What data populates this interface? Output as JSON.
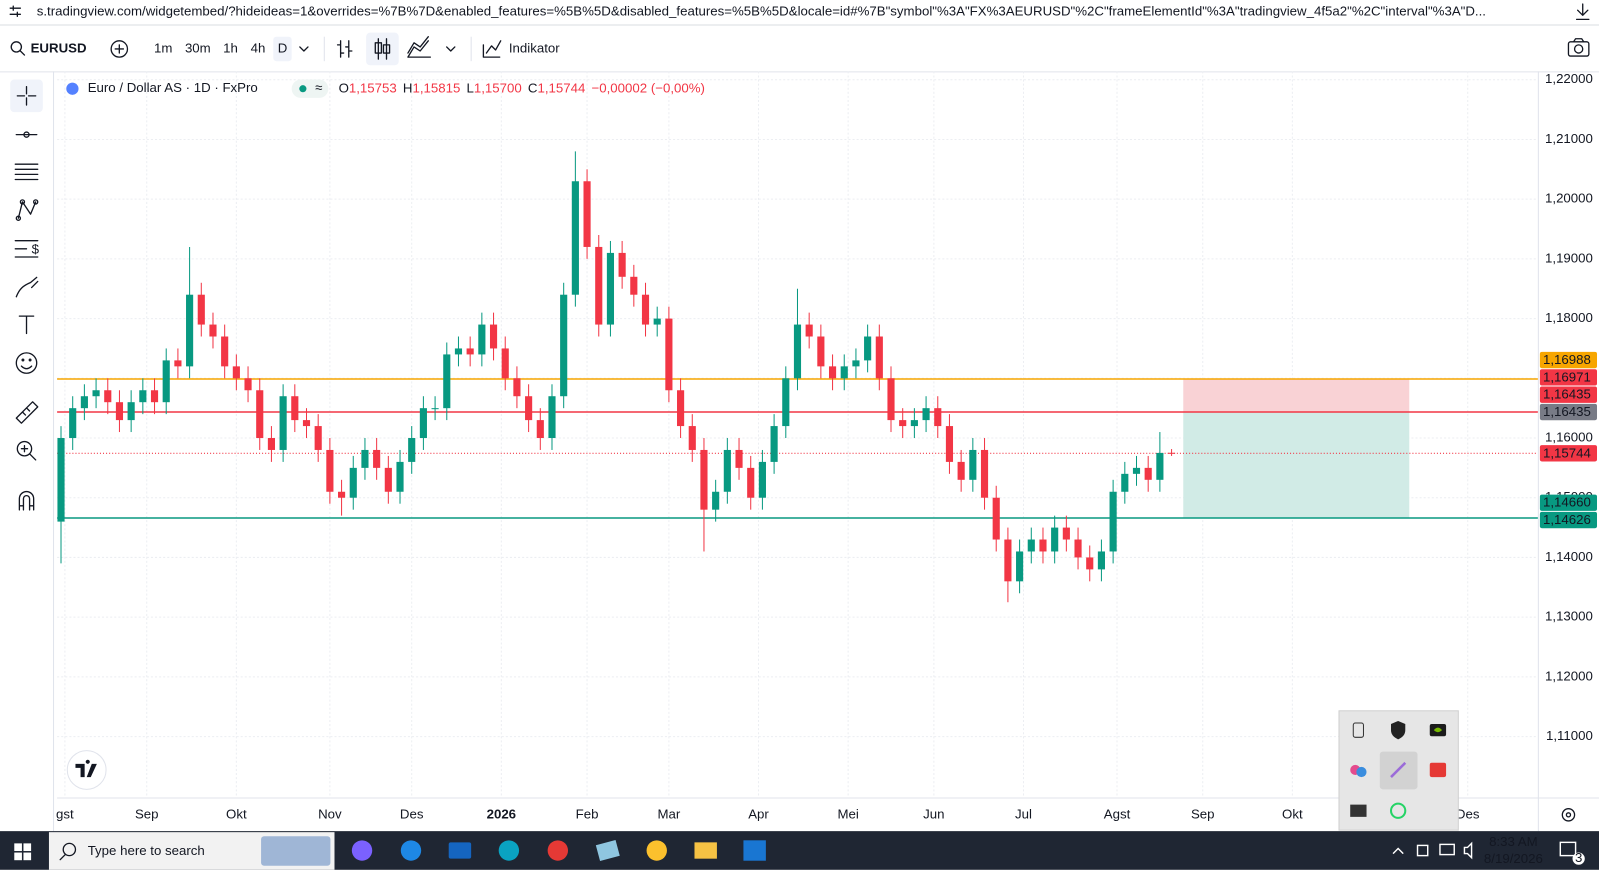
{
  "browser": {
    "url": "s.tradingview.com/widgetembed/?hideideas=1&overrides=%7B%7D&enabled_features=%5B%5D&disabled_features=%5B%5D&locale=id#%7B\"symbol\"%3A\"FX%3AEURUSD\"%2C\"frameElementId\"%3A\"tradingview_4f5a2\"%2C\"interval\"%3A\"D..."
  },
  "toolbar": {
    "symbol": "EURUSD",
    "intervals": [
      "1m",
      "30m",
      "1h",
      "4h",
      "D"
    ],
    "indicators": "Indikator"
  },
  "legend": {
    "title": "Euro / Dollar AS · 1D · FxPro",
    "badge": "≈",
    "values": [
      {
        "key": "O",
        "value": "1,15753"
      },
      {
        "key": "H",
        "value": "1,15815"
      },
      {
        "key": "L",
        "value": "1,15700"
      },
      {
        "key": "C",
        "value": "1,15744"
      }
    ],
    "change": "−0,00002 (−0,00%)"
  },
  "chart_data": {
    "type": "candlestick",
    "up_color": "#089981",
    "down_color": "#f23645",
    "grid": true,
    "xlim": [
      0,
      380
    ],
    "xticks": [
      {
        "value": 2,
        "label": "gst"
      },
      {
        "value": 23,
        "label": "Sep"
      },
      {
        "value": 46,
        "label": "Okt"
      },
      {
        "value": 70,
        "label": "Nov"
      },
      {
        "value": 91,
        "label": "Des"
      },
      {
        "value": 114,
        "label": "2026",
        "bold": true
      },
      {
        "value": 136,
        "label": "Feb"
      },
      {
        "value": 157,
        "label": "Mar"
      },
      {
        "value": 180,
        "label": "Apr"
      },
      {
        "value": 203,
        "label": "Mei"
      },
      {
        "value": 225,
        "label": "Jun"
      },
      {
        "value": 248,
        "label": "Jul"
      },
      {
        "value": 272,
        "label": "Agst"
      },
      {
        "value": 294,
        "label": "Sep"
      },
      {
        "value": 317,
        "label": "Okt"
      },
      {
        "value": 362,
        "label": "Des"
      }
    ],
    "ylim": [
      1.0998,
      1.2214
    ],
    "yticks": [
      {
        "value": 1.11,
        "label": "1,11000"
      },
      {
        "value": 1.12,
        "label": "1,12000"
      },
      {
        "value": 1.13,
        "label": "1,13000"
      },
      {
        "value": 1.14,
        "label": "1,14000"
      },
      {
        "value": 1.15,
        "label": "1,15000"
      },
      {
        "value": 1.16,
        "label": "1,16000"
      },
      {
        "value": 1.17,
        "label": "1,17000"
      },
      {
        "value": 1.18,
        "label": "1,18000"
      },
      {
        "value": 1.19,
        "label": "1,19000"
      },
      {
        "value": 1.2,
        "label": "1,20000"
      },
      {
        "value": 1.21,
        "label": "1,21000"
      },
      {
        "value": 1.22,
        "label": "1,22000"
      }
    ],
    "x": [
      1,
      4,
      7,
      10,
      13,
      16,
      19,
      22,
      25,
      28,
      31,
      34,
      37,
      40,
      43,
      46,
      49,
      52,
      55,
      58,
      61,
      64,
      67,
      70,
      73,
      76,
      79,
      82,
      85,
      88,
      91,
      94,
      97,
      100,
      103,
      106,
      109,
      112,
      115,
      118,
      121,
      124,
      127,
      130,
      133,
      136,
      139,
      142,
      145,
      148,
      151,
      154,
      157,
      160,
      163,
      166,
      169,
      172,
      175,
      178,
      181,
      184,
      187,
      190,
      193,
      196,
      199,
      202,
      205,
      208,
      211,
      214,
      217,
      220,
      223,
      226,
      229,
      232,
      235,
      238,
      241,
      244,
      247,
      250,
      253,
      256,
      259,
      262,
      265,
      268,
      271,
      274,
      277,
      280,
      283,
      286
    ],
    "open": [
      1.146,
      1.16,
      1.165,
      1.167,
      1.168,
      1.166,
      1.163,
      1.166,
      1.168,
      1.166,
      1.173,
      1.172,
      1.184,
      1.179,
      1.177,
      1.172,
      1.17,
      1.168,
      1.16,
      1.158,
      1.167,
      1.163,
      1.162,
      1.158,
      1.151,
      1.15,
      1.155,
      1.158,
      1.155,
      1.151,
      1.156,
      1.16,
      1.165,
      1.165,
      1.174,
      1.175,
      1.174,
      1.179,
      1.175,
      1.17,
      1.167,
      1.163,
      1.16,
      1.167,
      1.184,
      1.203,
      1.192,
      1.179,
      1.191,
      1.187,
      1.184,
      1.179,
      1.18,
      1.168,
      1.162,
      1.158,
      1.148,
      1.151,
      1.158,
      1.155,
      1.15,
      1.156,
      1.162,
      1.17,
      1.179,
      1.177,
      1.172,
      1.17,
      1.172,
      1.173,
      1.177,
      1.17,
      1.163,
      1.162,
      1.163,
      1.165,
      1.162,
      1.156,
      1.153,
      1.158,
      1.15,
      1.143,
      1.136,
      1.141,
      1.143,
      1.141,
      1.145,
      1.143,
      1.14,
      1.138,
      1.141,
      1.151,
      1.154,
      1.155,
      1.153,
      1.15753
    ],
    "high": [
      1.162,
      1.167,
      1.169,
      1.17,
      1.17,
      1.168,
      1.168,
      1.17,
      1.17,
      1.175,
      1.175,
      1.192,
      1.186,
      1.181,
      1.179,
      1.174,
      1.172,
      1.17,
      1.162,
      1.169,
      1.169,
      1.165,
      1.164,
      1.16,
      1.153,
      1.157,
      1.16,
      1.16,
      1.157,
      1.158,
      1.162,
      1.167,
      1.167,
      1.176,
      1.177,
      1.177,
      1.181,
      1.181,
      1.177,
      1.172,
      1.169,
      1.165,
      1.169,
      1.186,
      1.208,
      1.205,
      1.194,
      1.193,
      1.193,
      1.189,
      1.186,
      1.182,
      1.182,
      1.17,
      1.164,
      1.16,
      1.153,
      1.16,
      1.16,
      1.157,
      1.158,
      1.164,
      1.172,
      1.185,
      1.181,
      1.179,
      1.174,
      1.174,
      1.175,
      1.179,
      1.179,
      1.172,
      1.165,
      1.165,
      1.167,
      1.167,
      1.164,
      1.158,
      1.16,
      1.16,
      1.152,
      1.145,
      1.143,
      1.145,
      1.145,
      1.147,
      1.147,
      1.145,
      1.142,
      1.143,
      1.153,
      1.156,
      1.157,
      1.157,
      1.161,
      1.15815
    ],
    "low": [
      1.139,
      1.158,
      1.163,
      1.165,
      1.164,
      1.161,
      1.161,
      1.164,
      1.164,
      1.164,
      1.17,
      1.17,
      1.177,
      1.175,
      1.17,
      1.168,
      1.166,
      1.158,
      1.156,
      1.156,
      1.161,
      1.16,
      1.156,
      1.149,
      1.147,
      1.148,
      1.153,
      1.153,
      1.149,
      1.149,
      1.154,
      1.158,
      1.163,
      1.163,
      1.172,
      1.172,
      1.172,
      1.173,
      1.168,
      1.165,
      1.161,
      1.158,
      1.158,
      1.165,
      1.182,
      1.19,
      1.177,
      1.177,
      1.185,
      1.182,
      1.177,
      1.177,
      1.166,
      1.16,
      1.156,
      1.141,
      1.146,
      1.149,
      1.153,
      1.148,
      1.148,
      1.154,
      1.16,
      1.168,
      1.175,
      1.17,
      1.168,
      1.168,
      1.17,
      1.171,
      1.168,
      1.161,
      1.16,
      1.16,
      1.161,
      1.16,
      1.154,
      1.151,
      1.151,
      1.148,
      1.141,
      1.1325,
      1.134,
      1.139,
      1.139,
      1.139,
      1.141,
      1.138,
      1.136,
      1.136,
      1.139,
      1.149,
      1.152,
      1.151,
      1.151,
      1.157
    ],
    "close": [
      1.16,
      1.165,
      1.167,
      1.168,
      1.166,
      1.163,
      1.166,
      1.168,
      1.166,
      1.173,
      1.172,
      1.184,
      1.179,
      1.177,
      1.172,
      1.17,
      1.168,
      1.16,
      1.158,
      1.167,
      1.163,
      1.162,
      1.158,
      1.151,
      1.15,
      1.155,
      1.158,
      1.155,
      1.151,
      1.156,
      1.16,
      1.165,
      1.165,
      1.174,
      1.175,
      1.174,
      1.179,
      1.175,
      1.17,
      1.167,
      1.163,
      1.16,
      1.167,
      1.184,
      1.203,
      1.192,
      1.179,
      1.191,
      1.187,
      1.184,
      1.179,
      1.18,
      1.168,
      1.162,
      1.158,
      1.148,
      1.151,
      1.158,
      1.155,
      1.15,
      1.156,
      1.162,
      1.17,
      1.179,
      1.177,
      1.172,
      1.17,
      1.172,
      1.173,
      1.177,
      1.17,
      1.163,
      1.162,
      1.163,
      1.165,
      1.162,
      1.156,
      1.153,
      1.158,
      1.15,
      1.143,
      1.136,
      1.141,
      1.143,
      1.141,
      1.145,
      1.143,
      1.14,
      1.138,
      1.141,
      1.151,
      1.154,
      1.155,
      1.153,
      1.1575,
      1.15744
    ],
    "price_labels": [
      {
        "value": 1.16988,
        "label": "1,16988",
        "color": "#f7a600",
        "line": "solid"
      },
      {
        "value": 1.16971,
        "label": "1,16971",
        "color": "#f23645"
      },
      {
        "value": 1.16435,
        "label": "1,16435",
        "color": "#f23645",
        "line": "solid"
      },
      {
        "value": 1.16435,
        "label": "1,16435",
        "color": "#787b86"
      },
      {
        "value": 1.15744,
        "label": "1,15744",
        "color": "#f23645",
        "line": "dotted"
      },
      {
        "value": 1.1466,
        "label": "1,14660",
        "color": "#089981",
        "line": "solid"
      },
      {
        "value": 1.14626,
        "label": "1,14626",
        "color": "#089981"
      }
    ],
    "position": {
      "x": [
        289,
        347
      ],
      "stop": 1.16988,
      "entry": 1.16435,
      "target": 1.1466,
      "stop_color": "#f9d2d5",
      "target_color": "#d1ebe6"
    }
  },
  "taskbar": {
    "search": "Type here to search",
    "time": "8:33 AM",
    "date": "8/19/2026",
    "notifications": "3"
  }
}
